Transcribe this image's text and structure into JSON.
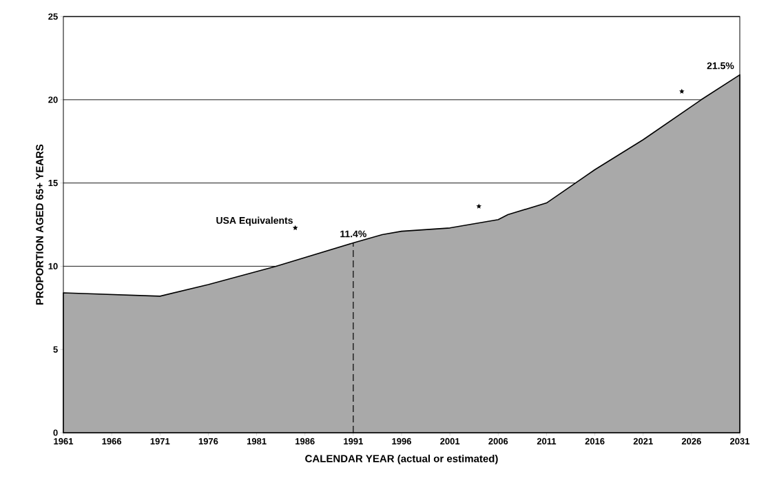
{
  "chart_data": {
    "type": "area",
    "xlabel": "CALENDAR YEAR (actual or estimated)",
    "ylabel": "PROPORTION AGED 65+ YEARS",
    "x": [
      1961,
      1971,
      1976,
      1983,
      1991,
      1994,
      1996,
      2001,
      2006,
      2007,
      2011,
      2016,
      2021,
      2027,
      2031
    ],
    "series": [
      {
        "color": "#a9a9a9",
        "values": [
          8.4,
          8.2,
          8.9,
          10.0,
          11.4,
          11.9,
          12.1,
          12.3,
          12.8,
          13.1,
          13.8,
          15.8,
          17.6,
          20.0,
          21.5
        ]
      },
      {
        "type": "scatter",
        "name": "USA Equivalents",
        "color": "#000000",
        "marker": "star",
        "x": [
          1985,
          2004,
          2025
        ],
        "values": [
          12.3,
          13.6,
          20.5
        ]
      }
    ],
    "xlim": [
      1961,
      2031
    ],
    "ylim": [
      0,
      25
    ],
    "xticks": [
      1961,
      1966,
      1971,
      1976,
      1981,
      1986,
      1991,
      1996,
      2001,
      2006,
      2011,
      2016,
      2021,
      2026,
      2031
    ],
    "yticks": [
      0,
      5,
      10,
      15,
      20,
      25
    ],
    "grid": "y",
    "ref_lines": [
      {
        "axis": "x",
        "value": 1991,
        "line_style": "dashed",
        "color": "#000000"
      }
    ],
    "annotations": [
      {
        "text": "11.4%",
        "x": 1991,
        "y": 11.4
      },
      {
        "text": "21.5%",
        "x": 2031,
        "y": 21.5
      }
    ]
  }
}
